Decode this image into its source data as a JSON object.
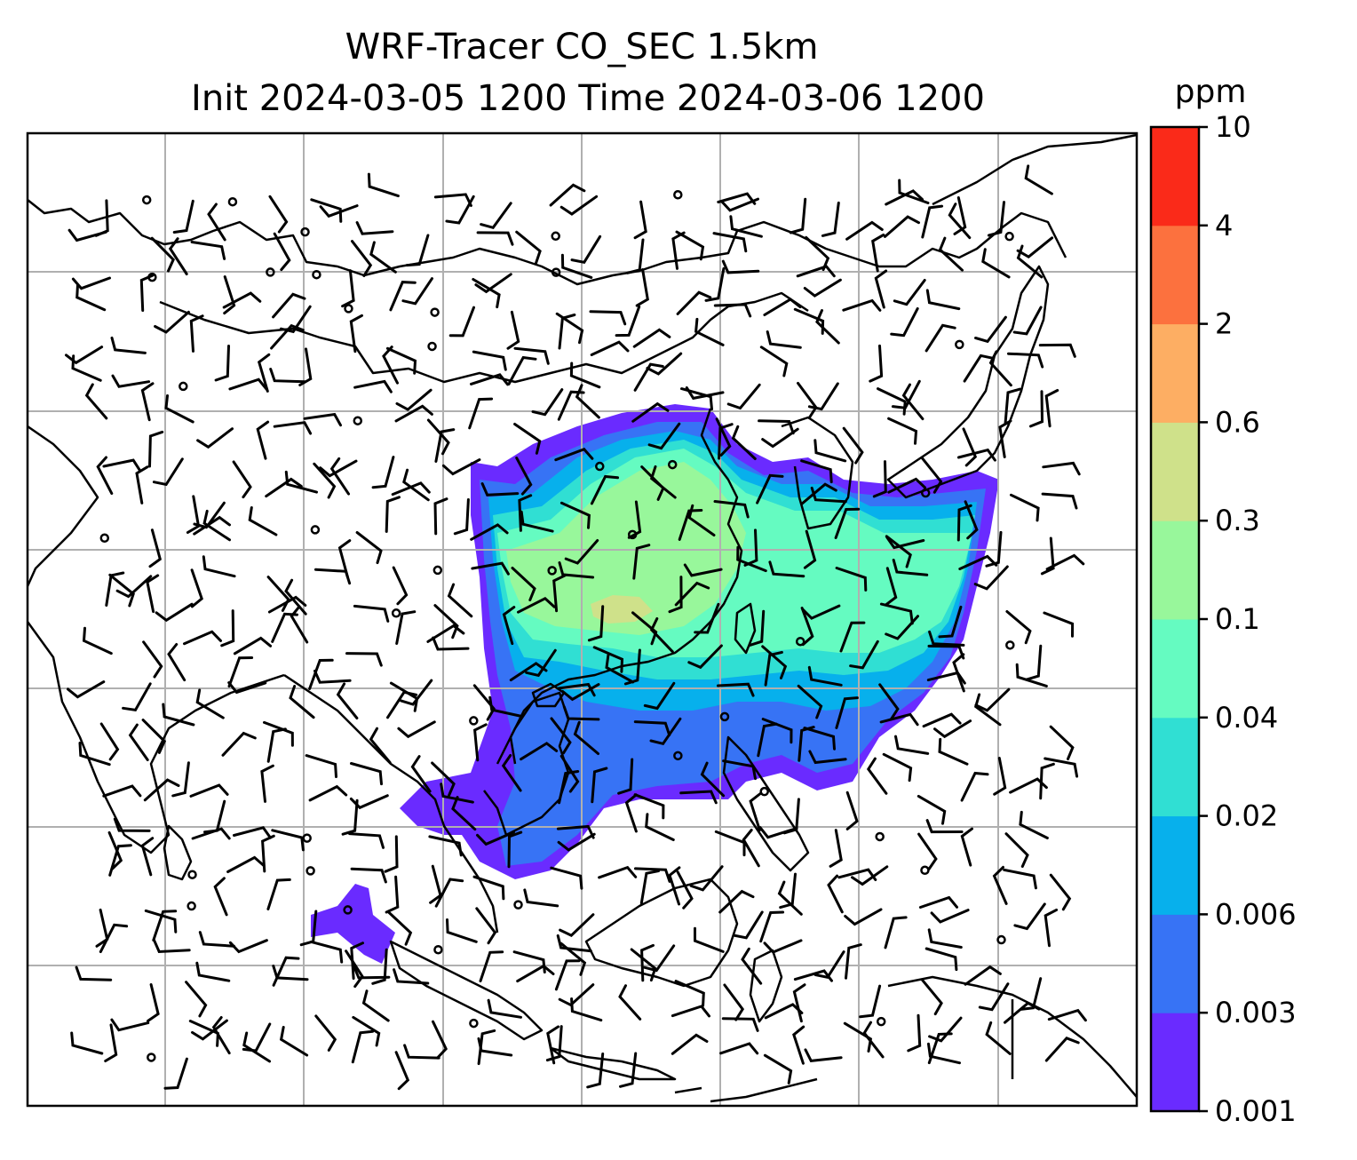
{
  "title": {
    "line1": "WRF-Tracer CO_SEC 1.5km",
    "line2": "Init 2024-03-05 1200 Time 2024-03-06 1200"
  },
  "colorbar": {
    "unit": "ppm",
    "levels": [
      "0.001",
      "0.003",
      "0.006",
      "0.02",
      "0.04",
      "0.1",
      "0.3",
      "0.6",
      "2",
      "4",
      "10"
    ],
    "colors": [
      "#6a2bff",
      "#3773f5",
      "#07b0ec",
      "#30dfd3",
      "#65fbc1",
      "#98f79b",
      "#cfe18a",
      "#fdae63",
      "#fc713e",
      "#fa2a19"
    ]
  },
  "map": {
    "gridlines": true,
    "gridline_color": "#b0b0b0",
    "coastline_color": "#000000",
    "shading": "CO_SEC tracer concentration at 1.5 km over East and Southeast Asia, highest over southern China and the East China Sea"
  },
  "chart_data": {
    "type": "heatmap",
    "variable": "CO_SEC",
    "level": "1.5km",
    "init": "2024-03-05 1200",
    "valid": "2024-03-06 1200",
    "colorbar_unit": "ppm",
    "colorbar_levels": [
      0.001,
      0.003,
      0.006,
      0.02,
      0.04,
      0.1,
      0.3,
      0.6,
      2,
      4,
      10
    ],
    "overlay": "wind barbs"
  }
}
